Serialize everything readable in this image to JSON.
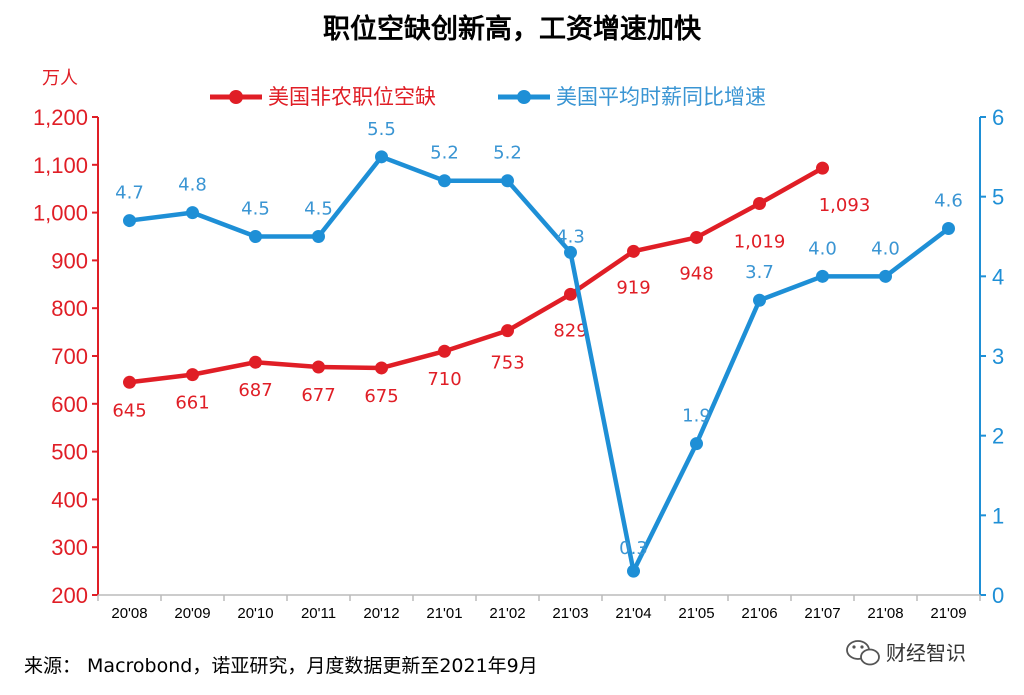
{
  "chart_data": {
    "type": "line",
    "title": "职位空缺创新高，工资增速加快",
    "x": [
      "20'08",
      "20'09",
      "20'10",
      "20'11",
      "20'12",
      "21'01",
      "21'02",
      "21'03",
      "21'04",
      "21'05",
      "21'06",
      "21'07",
      "21'08",
      "21'09"
    ],
    "y_left": {
      "unit": "万人",
      "range": [
        200,
        1200
      ],
      "ticks": [
        200,
        300,
        400,
        500,
        600,
        700,
        800,
        900,
        1000,
        1100,
        1200
      ],
      "tick_labels": [
        "200",
        "300",
        "400",
        "500",
        "600",
        "700",
        "800",
        "900",
        "1,000",
        "1,100",
        "1,200"
      ],
      "color": "#e01e26"
    },
    "y_right": {
      "range": [
        0,
        6
      ],
      "ticks": [
        0,
        1,
        2,
        3,
        4,
        5,
        6
      ],
      "tick_labels": [
        "0",
        "1",
        "2",
        "3",
        "4",
        "5",
        "6"
      ],
      "color": "#1e8fd6"
    },
    "grid": false,
    "legend_position": "top",
    "series": [
      {
        "name": "美国非农职位空缺",
        "axis": "left",
        "color": "#e01e26",
        "values": [
          645,
          661,
          687,
          677,
          675,
          710,
          753,
          829,
          919,
          948,
          1019,
          1093,
          null,
          null
        ],
        "labels": [
          "645",
          "661",
          "687",
          "677",
          "675",
          "710",
          "753",
          "829",
          "919",
          "948",
          "1,019",
          "1,093",
          null,
          null
        ]
      },
      {
        "name": "美国平均时薪同比增速",
        "axis": "right",
        "color": "#1e8fd6",
        "values": [
          4.7,
          4.8,
          4.5,
          4.5,
          5.5,
          5.2,
          5.2,
          4.3,
          0.3,
          1.9,
          3.7,
          4.0,
          4.0,
          4.6
        ],
        "labels": [
          "4.7",
          "4.8",
          "4.5",
          "4.5",
          "5.5",
          "5.2",
          "5.2",
          "4.3",
          "0.3",
          "1.9",
          "3.7",
          "4.0",
          "4.0",
          "4.6"
        ]
      }
    ]
  },
  "source": "来源： Macrobond，诺亚研究，月度数据更新至2021年9月",
  "watermark": "财经智识"
}
